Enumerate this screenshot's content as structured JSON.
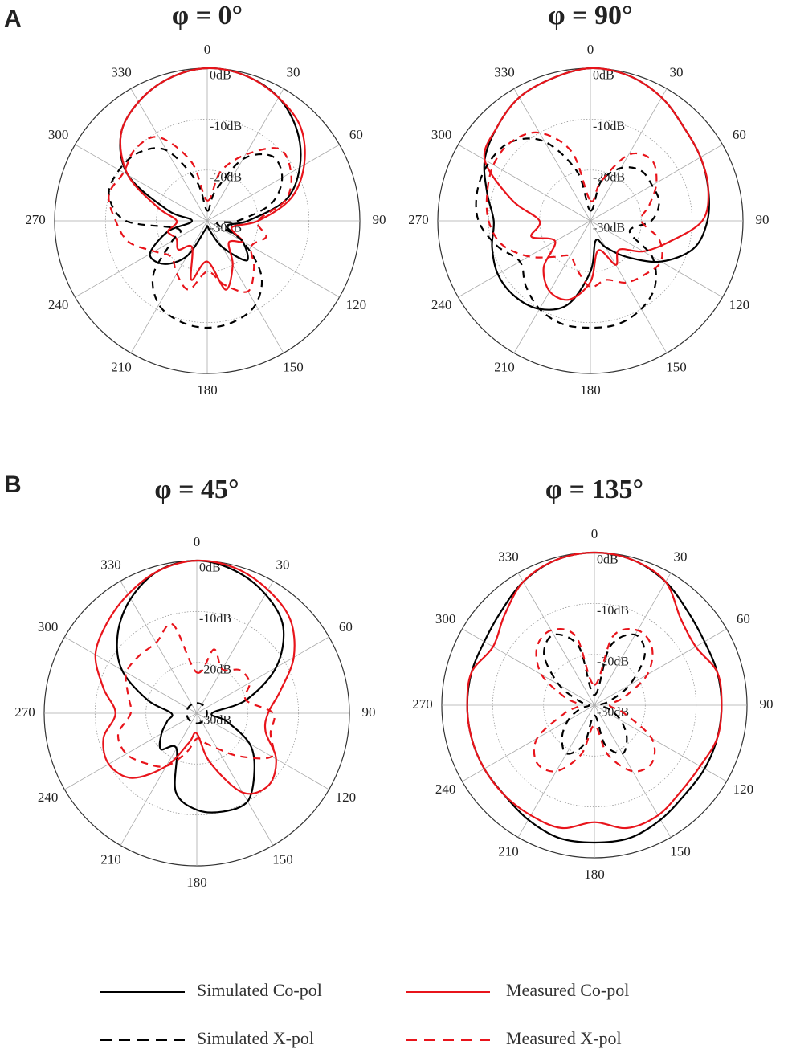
{
  "chart_data": [
    {
      "type": "polar",
      "panel": "A",
      "title": "φ = 0°",
      "theta": [
        0,
        15,
        30,
        45,
        60,
        75,
        90,
        105,
        120,
        135,
        150,
        165,
        180,
        195,
        210,
        225,
        240,
        255,
        270,
        285,
        300,
        315,
        330,
        345
      ],
      "rlim": [
        -30,
        0
      ],
      "rticks": [
        {
          "value": 0,
          "label": "0dB"
        },
        {
          "value": -10,
          "label": "-10dB"
        },
        {
          "value": -20,
          "label": "-20dB"
        },
        {
          "value": -30,
          "label": "-30dB"
        }
      ],
      "thetaticks": [
        0,
        30,
        60,
        90,
        120,
        150,
        180,
        210,
        240,
        270,
        300,
        330
      ],
      "series": [
        {
          "name": "Simulated Co-pol",
          "color": "#000000",
          "dash": false,
          "values": [
            0,
            -0.5,
            -2,
            -5,
            -9,
            -14,
            -22,
            -26,
            -22,
            -19,
            -24,
            -28,
            -29,
            -28,
            -22,
            -18,
            -17,
            -22,
            -27,
            -22,
            -12,
            -6,
            -3,
            -1
          ]
        },
        {
          "name": "Measured Co-pol",
          "color": "#e8141b",
          "dash": false,
          "values": [
            0,
            -0.5,
            -2,
            -4,
            -8,
            -13,
            -20,
            -25,
            -22,
            -24,
            -20,
            -16,
            -22,
            -18,
            -24,
            -22,
            -23,
            -22,
            -24,
            -20,
            -12,
            -6,
            -3,
            -1
          ]
        },
        {
          "name": "Simulated X-pol",
          "color": "#000000",
          "dash": true,
          "values": [
            -28,
            -24,
            -16,
            -12,
            -13,
            -17,
            -24,
            -28,
            -22,
            -15,
            -11,
            -9.5,
            -9,
            -9.5,
            -11,
            -15,
            -22,
            -24,
            -14,
            -10,
            -10,
            -11,
            -14,
            -22
          ]
        },
        {
          "name": "Measured X-pol",
          "color": "#e8141b",
          "dash": true,
          "values": [
            -26,
            -20,
            -15,
            -10,
            -11,
            -14,
            -20,
            -18,
            -20,
            -17,
            -14,
            -17,
            -20,
            -16,
            -18,
            -20,
            -18,
            -14,
            -12,
            -10,
            -11,
            -10,
            -11,
            -18
          ]
        }
      ]
    },
    {
      "type": "polar",
      "title": "φ = 90°",
      "theta": [
        0,
        15,
        30,
        45,
        60,
        75,
        90,
        105,
        120,
        135,
        150,
        165,
        180,
        195,
        210,
        225,
        240,
        255,
        270,
        285,
        300,
        315,
        330,
        345
      ],
      "rlim": [
        -30,
        0
      ],
      "rticks": [
        {
          "value": 0,
          "label": "0dB"
        },
        {
          "value": -10,
          "label": "-10dB"
        },
        {
          "value": -20,
          "label": "-20dB"
        },
        {
          "value": -30,
          "label": "-30dB"
        }
      ],
      "thetaticks": [
        0,
        30,
        60,
        90,
        120,
        150,
        180,
        210,
        240,
        270,
        300,
        330
      ],
      "series": [
        {
          "name": "Simulated Co-pol",
          "color": "#000000",
          "dash": false,
          "values": [
            0,
            -0.5,
            -2,
            -4,
            -5,
            -6,
            -7,
            -9,
            -14,
            -20,
            -24,
            -26,
            -20,
            -13,
            -10,
            -9,
            -9,
            -10,
            -11,
            -9,
            -6,
            -4,
            -2,
            -1
          ]
        },
        {
          "name": "Measured Co-pol",
          "color": "#e8141b",
          "dash": false,
          "values": [
            0,
            -0.5,
            -2,
            -4,
            -5,
            -6,
            -8,
            -14,
            -18,
            -22,
            -20,
            -24,
            -18,
            -14,
            -14,
            -17,
            -22,
            -18,
            -20,
            -14,
            -6,
            -4,
            -2,
            -1
          ]
        },
        {
          "name": "Simulated X-pol",
          "color": "#000000",
          "dash": true,
          "values": [
            -28,
            -22,
            -18,
            -16,
            -16,
            -16,
            -18,
            -22,
            -16,
            -12,
            -10,
            -9,
            -9,
            -9,
            -10,
            -12,
            -14,
            -11,
            -8,
            -7,
            -7,
            -8,
            -12,
            -20
          ]
        },
        {
          "name": "Measured X-pol",
          "color": "#e8141b",
          "dash": true,
          "values": [
            -26,
            -22,
            -15,
            -13,
            -15,
            -18,
            -20,
            -16,
            -14,
            -15,
            -16,
            -18,
            -17,
            -20,
            -22,
            -20,
            -16,
            -12,
            -10,
            -9,
            -8,
            -8,
            -10,
            -16
          ]
        }
      ]
    },
    {
      "type": "polar",
      "panel": "B",
      "title": "φ = 45°",
      "theta": [
        0,
        15,
        30,
        45,
        60,
        75,
        90,
        105,
        120,
        135,
        150,
        165,
        180,
        195,
        210,
        225,
        240,
        255,
        270,
        285,
        300,
        315,
        330,
        345
      ],
      "rlim": [
        -30,
        0
      ],
      "rticks": [
        {
          "value": 0,
          "label": "0dB"
        },
        {
          "value": -10,
          "label": "-10dB"
        },
        {
          "value": -20,
          "label": "-20dB"
        },
        {
          "value": -30,
          "label": "-30dB"
        }
      ],
      "thetaticks": [
        0,
        30,
        60,
        90,
        120,
        150,
        180,
        210,
        240,
        270,
        300,
        330
      ],
      "series": [
        {
          "name": "Simulated Co-pol",
          "color": "#000000",
          "dash": false,
          "values": [
            0,
            -1,
            -3,
            -6,
            -12,
            -20,
            -27,
            -24,
            -18,
            -14,
            -10,
            -10,
            -11,
            -14,
            -22,
            -20,
            -22,
            -24,
            -25,
            -20,
            -13,
            -8,
            -4,
            -1
          ]
        },
        {
          "name": "Measured Co-pol",
          "color": "#e8141b",
          "dash": false,
          "values": [
            0,
            -0.5,
            -2,
            -4,
            -8,
            -13,
            -16,
            -16,
            -12,
            -10,
            -12,
            -20,
            -26,
            -24,
            -18,
            -12,
            -10,
            -11,
            -14,
            -11,
            -7,
            -5,
            -3,
            -1
          ]
        },
        {
          "name": "Simulated X-pol",
          "color": "#000000",
          "dash": true,
          "values": [
            -28,
            -28,
            -28,
            -28,
            -28,
            -28,
            -28,
            -28,
            -28,
            -28,
            -28,
            -28,
            -28,
            -28,
            -28,
            -28,
            -28,
            -28,
            -28,
            -28,
            -28,
            -28,
            -28,
            -28
          ]
        },
        {
          "name": "Measured X-pol",
          "color": "#e8141b",
          "dash": true,
          "values": [
            -22,
            -17,
            -20,
            -18,
            -18,
            -20,
            -15,
            -15,
            -13,
            -18,
            -22,
            -24,
            -25,
            -22,
            -18,
            -16,
            -14,
            -14,
            -17,
            -16,
            -14,
            -14,
            -14,
            -12
          ]
        }
      ]
    },
    {
      "type": "polar",
      "title": "φ = 135°",
      "theta": [
        0,
        15,
        30,
        45,
        60,
        75,
        90,
        105,
        120,
        135,
        150,
        165,
        180,
        195,
        210,
        225,
        240,
        255,
        270,
        285,
        300,
        315,
        330,
        345
      ],
      "rlim": [
        -30,
        0
      ],
      "rticks": [
        {
          "value": 0,
          "label": "0dB"
        },
        {
          "value": -10,
          "label": "-10dB"
        },
        {
          "value": -20,
          "label": "-20dB"
        },
        {
          "value": -30,
          "label": "-30dB"
        }
      ],
      "thetaticks": [
        0,
        30,
        60,
        90,
        120,
        150,
        180,
        210,
        240,
        270,
        300,
        330
      ],
      "series": [
        {
          "name": "Simulated Co-pol",
          "color": "#000000",
          "dash": false,
          "values": [
            0,
            -0.5,
            -2,
            -4,
            -5,
            -5,
            -5,
            -5,
            -5,
            -5,
            -4,
            -3,
            -3,
            -3,
            -4,
            -5,
            -5,
            -5,
            -5,
            -5,
            -5,
            -4,
            -2,
            -0.5
          ]
        },
        {
          "name": "Measured Co-pol",
          "color": "#e8141b",
          "dash": false,
          "values": [
            0,
            -0.5,
            -2,
            -6,
            -7,
            -5,
            -5,
            -5,
            -6,
            -6,
            -5,
            -5,
            -7,
            -5,
            -5,
            -5,
            -5,
            -5,
            -5,
            -5,
            -7,
            -5,
            -2,
            -0.5
          ]
        },
        {
          "name": "Simulated X-pol",
          "color": "#000000",
          "dash": true,
          "values": [
            -28,
            -18,
            -14,
            -16,
            -22,
            -27,
            -29,
            -27,
            -24,
            -21,
            -19,
            -22,
            -28,
            -22,
            -19,
            -21,
            -24,
            -27,
            -29,
            -27,
            -22,
            -16,
            -14,
            -18
          ]
        },
        {
          "name": "Measured X-pol",
          "color": "#e8141b",
          "dash": true,
          "values": [
            -26,
            -16,
            -13,
            -14,
            -18,
            -24,
            -27,
            -24,
            -17,
            -14,
            -15,
            -20,
            -26,
            -20,
            -15,
            -14,
            -17,
            -24,
            -27,
            -24,
            -18,
            -14,
            -13,
            -16
          ]
        }
      ]
    }
  ]
}
